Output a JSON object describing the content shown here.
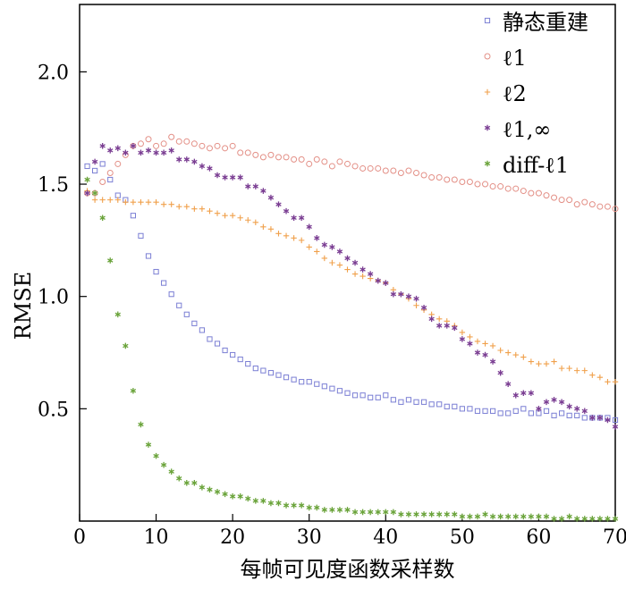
{
  "chart_data": {
    "type": "scatter",
    "xlabel": "每帧可见度函数采样数",
    "ylabel": "RMSE",
    "xlim": [
      0,
      70
    ],
    "ylim": [
      0,
      2.3
    ],
    "xticks": [
      {
        "v": 0,
        "label": "0"
      },
      {
        "v": 10,
        "label": "10"
      },
      {
        "v": 20,
        "label": "20"
      },
      {
        "v": 30,
        "label": "30"
      },
      {
        "v": 40,
        "label": "40"
      },
      {
        "v": 50,
        "label": "50"
      },
      {
        "v": 60,
        "label": "60"
      },
      {
        "v": 70,
        "label": "70"
      }
    ],
    "yticks": [
      {
        "v": 0.5,
        "label": "0.5"
      },
      {
        "v": 1.0,
        "label": "1.0"
      },
      {
        "v": 1.5,
        "label": "1.5"
      },
      {
        "v": 2.0,
        "label": "2.0"
      }
    ],
    "legend_position": "top-right",
    "series": [
      {
        "name": "静态重建",
        "marker": "square",
        "color": "#7b7fd4",
        "x": [
          1,
          2,
          3,
          4,
          5,
          6,
          7,
          8,
          9,
          10,
          11,
          12,
          13,
          14,
          15,
          16,
          17,
          18,
          19,
          20,
          21,
          22,
          23,
          24,
          25,
          26,
          27,
          28,
          29,
          30,
          31,
          32,
          33,
          34,
          35,
          36,
          37,
          38,
          39,
          40,
          41,
          42,
          43,
          44,
          45,
          46,
          47,
          48,
          49,
          50,
          51,
          52,
          53,
          54,
          55,
          56,
          57,
          58,
          59,
          60,
          61,
          62,
          63,
          64,
          65,
          66,
          67,
          68,
          69,
          70
        ],
        "y": [
          1.58,
          1.56,
          1.59,
          1.52,
          1.45,
          1.43,
          1.36,
          1.27,
          1.18,
          1.11,
          1.06,
          1.01,
          0.96,
          0.92,
          0.88,
          0.85,
          0.81,
          0.79,
          0.76,
          0.74,
          0.72,
          0.7,
          0.68,
          0.67,
          0.66,
          0.65,
          0.64,
          0.63,
          0.62,
          0.62,
          0.61,
          0.6,
          0.59,
          0.58,
          0.57,
          0.56,
          0.56,
          0.55,
          0.55,
          0.56,
          0.54,
          0.53,
          0.54,
          0.53,
          0.53,
          0.52,
          0.52,
          0.51,
          0.51,
          0.5,
          0.5,
          0.49,
          0.49,
          0.49,
          0.48,
          0.48,
          0.49,
          0.5,
          0.48,
          0.48,
          0.49,
          0.47,
          0.48,
          0.47,
          0.47,
          0.46,
          0.46,
          0.46,
          0.46,
          0.45
        ]
      },
      {
        "name": "ℓ1",
        "marker": "circle",
        "color": "#e38f86",
        "x": [
          1,
          2,
          3,
          4,
          5,
          6,
          7,
          8,
          9,
          10,
          11,
          12,
          13,
          14,
          15,
          16,
          17,
          18,
          19,
          20,
          21,
          22,
          23,
          24,
          25,
          26,
          27,
          28,
          29,
          30,
          31,
          32,
          33,
          34,
          35,
          36,
          37,
          38,
          39,
          40,
          41,
          42,
          43,
          44,
          45,
          46,
          47,
          48,
          49,
          50,
          51,
          52,
          53,
          54,
          55,
          56,
          57,
          58,
          59,
          60,
          61,
          62,
          63,
          64,
          65,
          66,
          67,
          68,
          69,
          70
        ],
        "y": [
          1.46,
          1.46,
          1.51,
          1.55,
          1.59,
          1.63,
          1.67,
          1.68,
          1.7,
          1.67,
          1.68,
          1.71,
          1.69,
          1.69,
          1.68,
          1.67,
          1.66,
          1.67,
          1.66,
          1.67,
          1.64,
          1.64,
          1.63,
          1.62,
          1.63,
          1.62,
          1.62,
          1.61,
          1.61,
          1.59,
          1.61,
          1.6,
          1.58,
          1.6,
          1.59,
          1.58,
          1.57,
          1.57,
          1.57,
          1.56,
          1.56,
          1.55,
          1.56,
          1.55,
          1.54,
          1.53,
          1.53,
          1.52,
          1.52,
          1.51,
          1.51,
          1.5,
          1.5,
          1.49,
          1.49,
          1.48,
          1.48,
          1.47,
          1.46,
          1.46,
          1.45,
          1.44,
          1.43,
          1.43,
          1.41,
          1.42,
          1.41,
          1.4,
          1.4,
          1.39
        ]
      },
      {
        "name": "ℓ2",
        "marker": "plus",
        "color": "#f0a04b",
        "x": [
          1,
          2,
          3,
          4,
          5,
          6,
          7,
          8,
          9,
          10,
          11,
          12,
          13,
          14,
          15,
          16,
          17,
          18,
          19,
          20,
          21,
          22,
          23,
          24,
          25,
          26,
          27,
          28,
          29,
          30,
          31,
          32,
          33,
          34,
          35,
          36,
          37,
          38,
          39,
          40,
          41,
          42,
          43,
          44,
          45,
          46,
          47,
          48,
          49,
          50,
          51,
          52,
          53,
          54,
          55,
          56,
          57,
          58,
          59,
          60,
          61,
          62,
          63,
          64,
          65,
          66,
          67,
          68,
          69,
          70
        ],
        "y": [
          1.47,
          1.43,
          1.43,
          1.43,
          1.43,
          1.42,
          1.42,
          1.42,
          1.42,
          1.42,
          1.41,
          1.41,
          1.4,
          1.4,
          1.39,
          1.39,
          1.38,
          1.37,
          1.36,
          1.36,
          1.35,
          1.34,
          1.33,
          1.31,
          1.3,
          1.28,
          1.27,
          1.26,
          1.25,
          1.22,
          1.2,
          1.17,
          1.15,
          1.14,
          1.12,
          1.1,
          1.09,
          1.08,
          1.07,
          1.06,
          1.03,
          1.01,
          0.99,
          0.96,
          0.94,
          0.92,
          0.9,
          0.89,
          0.87,
          0.84,
          0.82,
          0.8,
          0.79,
          0.78,
          0.76,
          0.75,
          0.74,
          0.73,
          0.71,
          0.7,
          0.7,
          0.71,
          0.68,
          0.68,
          0.67,
          0.67,
          0.65,
          0.64,
          0.62,
          0.62
        ]
      },
      {
        "name": "ℓ1,∞",
        "marker": "star",
        "color": "#7a3d92",
        "x": [
          1,
          2,
          3,
          4,
          5,
          6,
          7,
          8,
          9,
          10,
          11,
          12,
          13,
          14,
          15,
          16,
          17,
          18,
          19,
          20,
          21,
          22,
          23,
          24,
          25,
          26,
          27,
          28,
          29,
          30,
          31,
          32,
          33,
          34,
          35,
          36,
          37,
          38,
          39,
          40,
          41,
          42,
          43,
          44,
          45,
          46,
          47,
          48,
          49,
          50,
          51,
          52,
          53,
          54,
          55,
          56,
          57,
          58,
          59,
          60,
          61,
          62,
          63,
          64,
          65,
          66,
          67,
          68,
          69,
          70
        ],
        "y": [
          1.46,
          1.6,
          1.67,
          1.65,
          1.66,
          1.64,
          1.67,
          1.64,
          1.65,
          1.64,
          1.64,
          1.65,
          1.61,
          1.61,
          1.6,
          1.58,
          1.57,
          1.54,
          1.53,
          1.53,
          1.53,
          1.49,
          1.49,
          1.47,
          1.44,
          1.41,
          1.38,
          1.35,
          1.35,
          1.31,
          1.26,
          1.23,
          1.22,
          1.2,
          1.17,
          1.15,
          1.12,
          1.1,
          1.07,
          1.06,
          1.01,
          1.01,
          1.0,
          0.99,
          0.95,
          0.9,
          0.87,
          0.87,
          0.86,
          0.81,
          0.79,
          0.75,
          0.74,
          0.71,
          0.66,
          0.61,
          0.56,
          0.57,
          0.57,
          0.5,
          0.53,
          0.54,
          0.53,
          0.51,
          0.5,
          0.49,
          0.46,
          0.46,
          0.45,
          0.42
        ]
      },
      {
        "name": "diff-ℓ1",
        "marker": "star",
        "color": "#6aa33a",
        "x": [
          1,
          2,
          3,
          4,
          5,
          6,
          7,
          8,
          9,
          10,
          11,
          12,
          13,
          14,
          15,
          16,
          17,
          18,
          19,
          20,
          21,
          22,
          23,
          24,
          25,
          26,
          27,
          28,
          29,
          30,
          31,
          32,
          33,
          34,
          35,
          36,
          37,
          38,
          39,
          40,
          41,
          42,
          43,
          44,
          45,
          46,
          47,
          48,
          49,
          50,
          51,
          52,
          53,
          54,
          55,
          56,
          57,
          58,
          59,
          60,
          61,
          62,
          63,
          64,
          65,
          66,
          67,
          68,
          69,
          70
        ],
        "y": [
          1.52,
          1.46,
          1.35,
          1.16,
          0.92,
          0.78,
          0.58,
          0.43,
          0.34,
          0.29,
          0.25,
          0.22,
          0.19,
          0.17,
          0.17,
          0.15,
          0.14,
          0.13,
          0.12,
          0.11,
          0.11,
          0.1,
          0.09,
          0.09,
          0.08,
          0.08,
          0.07,
          0.07,
          0.07,
          0.06,
          0.06,
          0.05,
          0.05,
          0.05,
          0.05,
          0.04,
          0.04,
          0.04,
          0.04,
          0.04,
          0.04,
          0.03,
          0.03,
          0.03,
          0.03,
          0.03,
          0.03,
          0.03,
          0.03,
          0.02,
          0.02,
          0.02,
          0.03,
          0.02,
          0.02,
          0.02,
          0.02,
          0.02,
          0.02,
          0.02,
          0.02,
          0.01,
          0.01,
          0.02,
          0.01,
          0.01,
          0.01,
          0.01,
          0.01,
          0.01
        ]
      }
    ]
  }
}
